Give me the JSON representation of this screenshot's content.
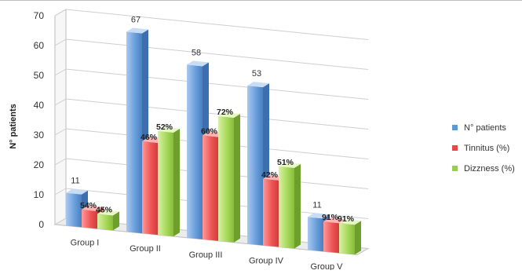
{
  "chart_data": {
    "type": "bar",
    "title": "",
    "ylabel": "N° patients",
    "xlabel": "",
    "ylim": [
      0,
      70
    ],
    "yticks": [
      "0",
      "10",
      "20",
      "30",
      "40",
      "50",
      "60",
      "70"
    ],
    "categories": [
      "Group I",
      "Group II",
      "Group III",
      "Group IV",
      "Group V"
    ],
    "series": [
      {
        "name": "N° patients",
        "color": "#5b9bd5",
        "values": [
          11,
          67,
          58,
          53,
          11
        ],
        "labels": [
          "11",
          "67",
          "58",
          "53",
          "11"
        ]
      },
      {
        "name": "Tinnitus (%)",
        "color": "#e8474a",
        "values": [
          5.9,
          30.8,
          34.8,
          22.3,
          10
        ],
        "labels": [
          "54%",
          "46%",
          "60%",
          "42%",
          "91%"
        ]
      },
      {
        "name": "Dizzness (%)",
        "color": "#9acd4a",
        "values": [
          5,
          34.8,
          41.8,
          27.0,
          10
        ],
        "labels": [
          "45%",
          "52%",
          "72%",
          "51%",
          "91%"
        ]
      }
    ],
    "legend_position": "right",
    "grid": true,
    "style": "3d-clustered-column"
  }
}
